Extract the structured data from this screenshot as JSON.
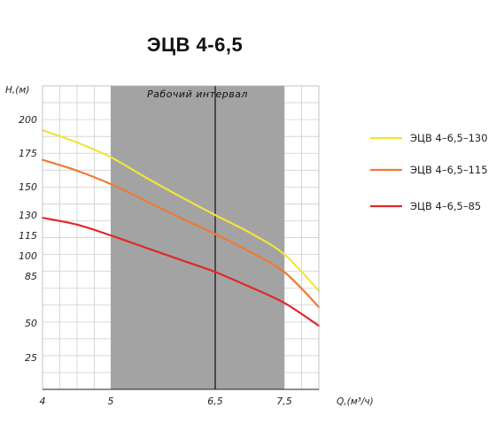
{
  "chart_data": {
    "type": "line",
    "title": "ЭЦВ 4-6,5",
    "xlabel": "Q,(м³/ч)",
    "ylabel": "Н,(м)",
    "x_ticks": [
      {
        "value": 4,
        "label": "4"
      },
      {
        "value": 5,
        "label": "5"
      },
      {
        "value": 6.5,
        "label": "6,5"
      },
      {
        "value": 7.5,
        "label": "7,5"
      }
    ],
    "y_ticks": [
      {
        "value": 200,
        "label": "200"
      },
      {
        "value": 175,
        "label": "175"
      },
      {
        "value": 150,
        "label": "150"
      },
      {
        "value": 130,
        "label": "130"
      },
      {
        "value": 115,
        "label": "115"
      },
      {
        "value": 100,
        "label": "100"
      },
      {
        "value": 85,
        "label": "85"
      },
      {
        "value": 50,
        "label": "50"
      },
      {
        "value": 25,
        "label": "25"
      }
    ],
    "working_interval": {
      "label": "Рабочий интервал",
      "from": 5,
      "to": 7.5,
      "marker": 6.5
    },
    "grid": true,
    "legend_position": "right",
    "series": [
      {
        "name": "ЭЦВ 4–6,5–130",
        "color": "#f2e43a",
        "x": [
          4,
          4.5,
          5,
          5.5,
          6,
          6.5,
          7,
          7.5,
          8
        ],
        "y": [
          192,
          183,
          172,
          157,
          143,
          130,
          117,
          101,
          74
        ]
      },
      {
        "name": "ЭЦВ 4–6,5–115",
        "color": "#ee7a33",
        "x": [
          4,
          4.5,
          5,
          5.5,
          6,
          6.5,
          7,
          7.5,
          8
        ],
        "y": [
          170,
          162,
          152,
          140,
          128,
          116,
          103,
          88,
          62
        ]
      },
      {
        "name": "ЭЦВ 4–6,5–85",
        "color": "#e02828",
        "x": [
          4,
          4.5,
          5,
          5.5,
          6,
          6.5,
          7,
          7.5,
          8
        ],
        "y": [
          128,
          123,
          115,
          106,
          97,
          88,
          77,
          65,
          48
        ]
      }
    ]
  }
}
